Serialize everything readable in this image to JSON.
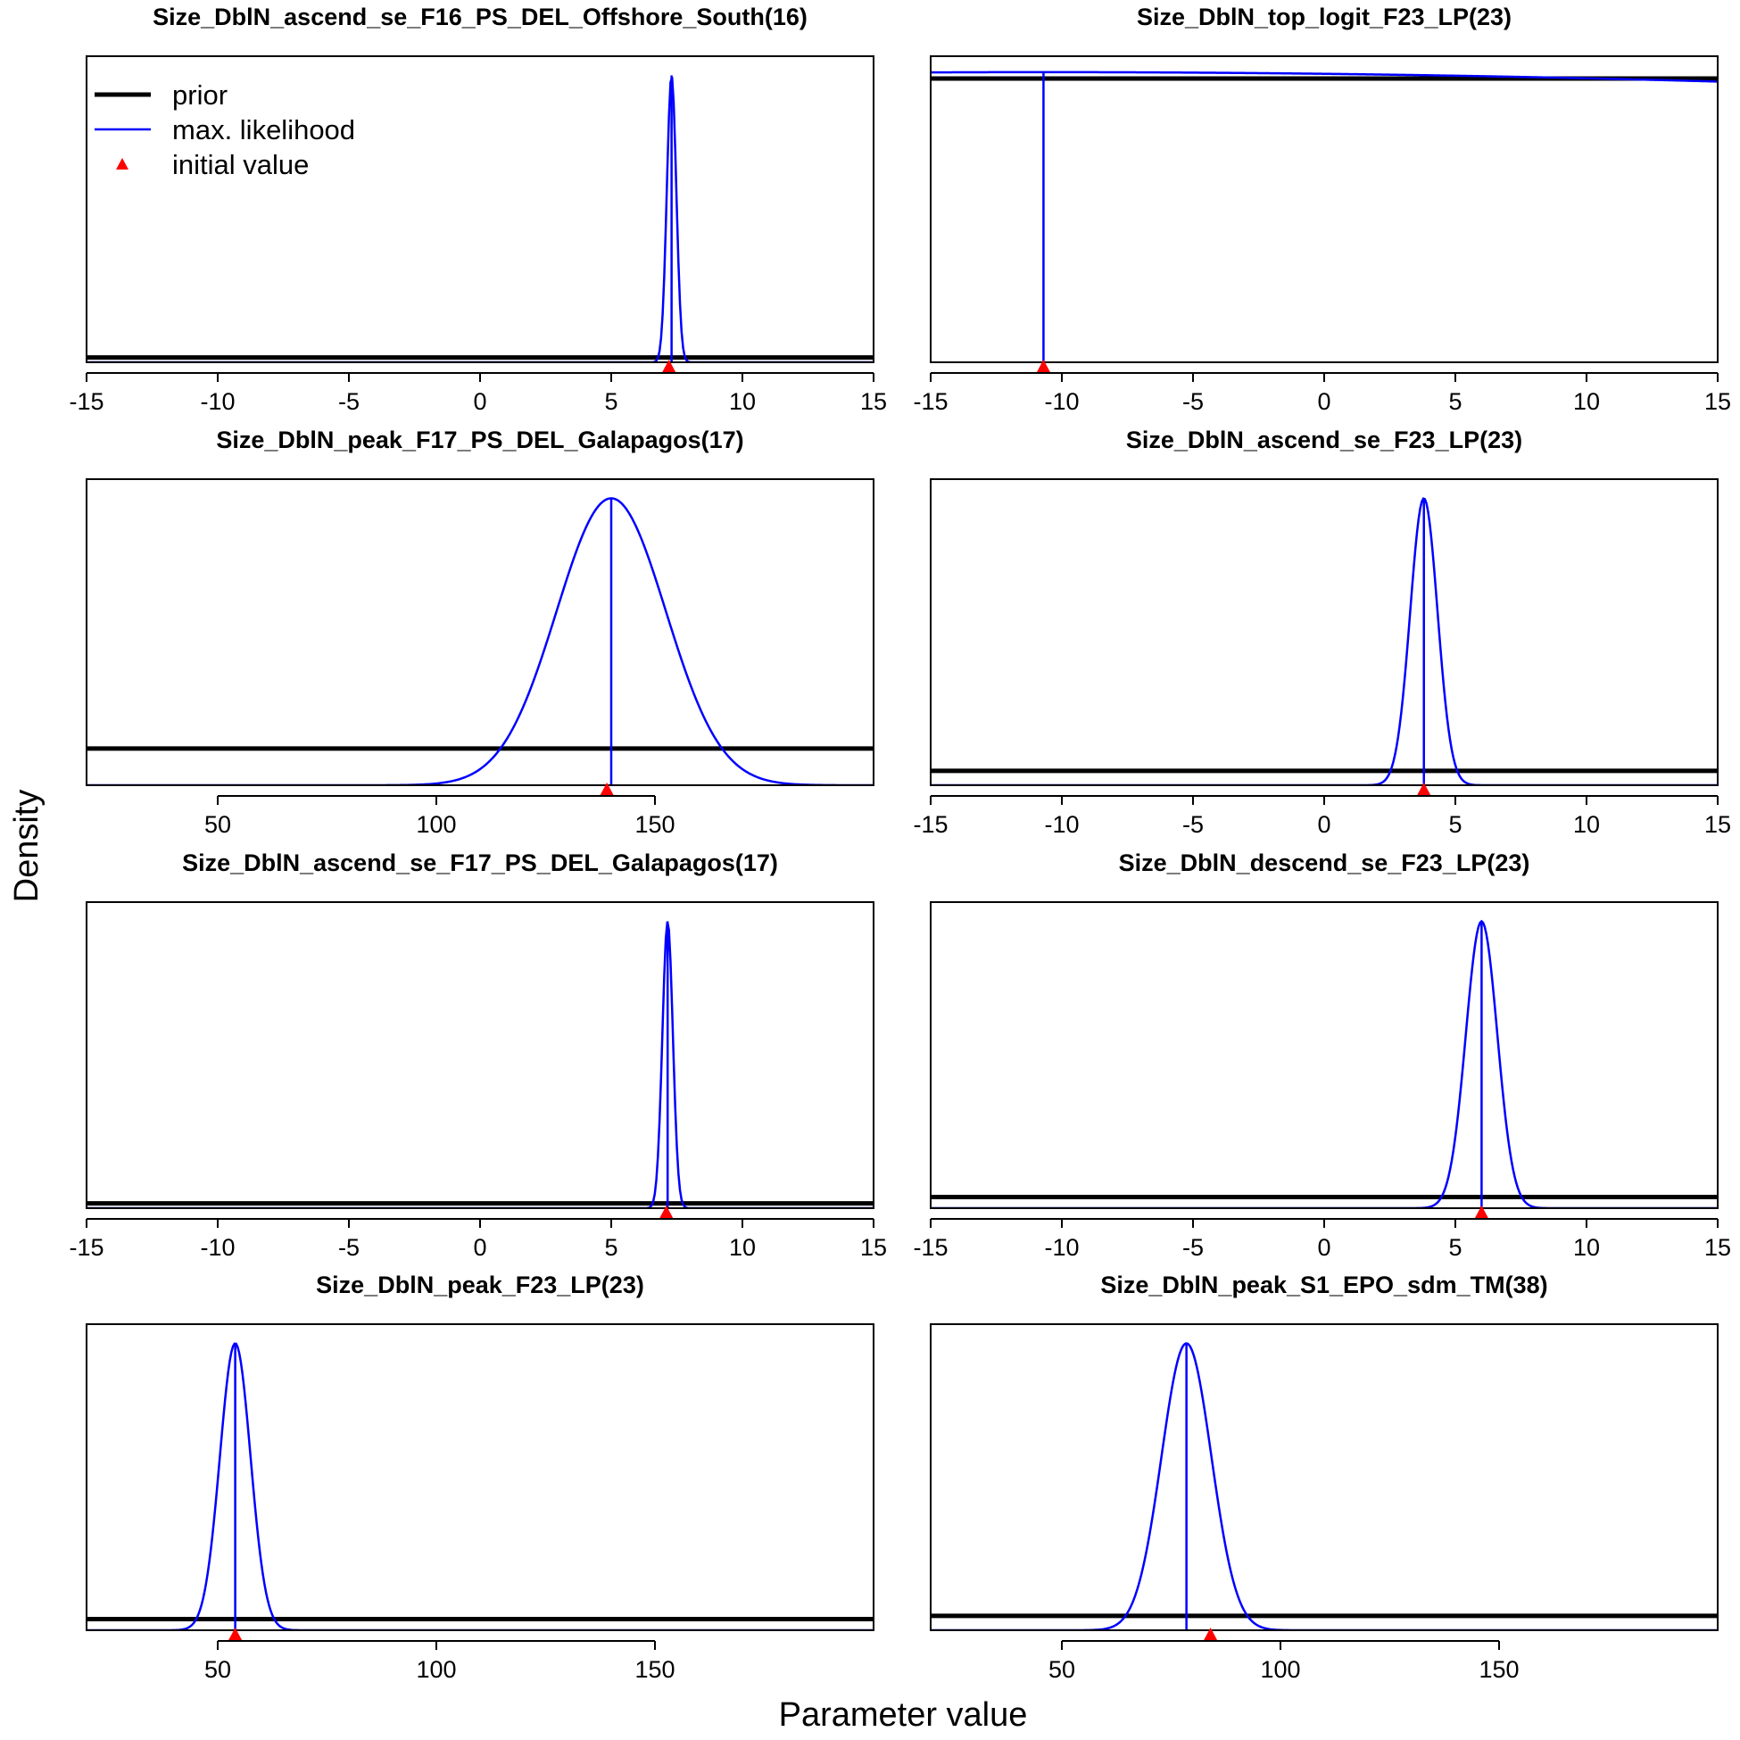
{
  "figure": {
    "xlabel": "Parameter value",
    "ylabel": "Density",
    "legend": {
      "placement": "top-left of first panel",
      "entries": [
        {
          "label": "prior",
          "color": "#000000",
          "style": "thick-line"
        },
        {
          "label": "max. likelihood",
          "color": "#0000ff",
          "style": "line"
        },
        {
          "label": "initial value",
          "color": "#ff0000",
          "style": "triangle"
        }
      ]
    }
  },
  "chart_data": [
    {
      "type": "line",
      "title": "Size_DblN_ascend_se_F16_PS_DEL_Offshore_South(16)",
      "xlim": [
        -15,
        15
      ],
      "xticks": [
        -15,
        -10,
        -5,
        0,
        5,
        10,
        15
      ],
      "prior": {
        "kind": "flat",
        "level": 0.015
      },
      "mle": {
        "mean": 7.3,
        "sd": 0.18,
        "peak": 0.9
      },
      "initial_value": 7.2
    },
    {
      "type": "line",
      "title": "Size_DblN_top_logit_F23_LP(23)",
      "xlim": [
        -15,
        15
      ],
      "xticks": [
        -15,
        -10,
        -5,
        0,
        5,
        10,
        15
      ],
      "prior": {
        "kind": "flat",
        "level": 0.89
      },
      "mle": {
        "mean": -10.7,
        "sd": 100,
        "peak": 0.91,
        "mean_line": 0.91
      },
      "initial_value": -10.7
    },
    {
      "type": "line",
      "title": "Size_DblN_peak_F17_PS_DEL_Galapagos(17)",
      "xlim": [
        20,
        200
      ],
      "xticks": [
        50,
        100,
        150
      ],
      "prior": {
        "kind": "flat",
        "level": 0.115
      },
      "mle": {
        "mean": 140,
        "sd": 12.5,
        "peak": 0.9
      },
      "initial_value": 139
    },
    {
      "type": "line",
      "title": "Size_DblN_ascend_se_F23_LP(23)",
      "xlim": [
        -15,
        15
      ],
      "xticks": [
        -15,
        -10,
        -5,
        0,
        5,
        10,
        15
      ],
      "prior": {
        "kind": "flat",
        "level": 0.045
      },
      "mle": {
        "mean": 3.8,
        "sd": 0.52,
        "peak": 0.9
      },
      "initial_value": 3.8
    },
    {
      "type": "line",
      "title": "Size_DblN_ascend_se_F17_PS_DEL_Galapagos(17)",
      "xlim": [
        -15,
        15
      ],
      "xticks": [
        -15,
        -10,
        -5,
        0,
        5,
        10,
        15
      ],
      "prior": {
        "kind": "flat",
        "level": 0.015
      },
      "mle": {
        "mean": 7.15,
        "sd": 0.2,
        "peak": 0.9
      },
      "initial_value": 7.1
    },
    {
      "type": "line",
      "title": "Size_DblN_descend_se_F23_LP(23)",
      "xlim": [
        -15,
        15
      ],
      "xticks": [
        -15,
        -10,
        -5,
        0,
        5,
        10,
        15
      ],
      "prior": {
        "kind": "flat",
        "level": 0.035
      },
      "mle": {
        "mean": 6.0,
        "sd": 0.6,
        "peak": 0.9
      },
      "initial_value": 6.0
    },
    {
      "type": "line",
      "title": "Size_DblN_peak_F23_LP(23)",
      "xlim": [
        20,
        200
      ],
      "xticks": [
        50,
        100,
        150
      ],
      "prior": {
        "kind": "flat",
        "level": 0.035
      },
      "mle": {
        "mean": 54,
        "sd": 3.5,
        "peak": 0.9
      },
      "initial_value": 54
    },
    {
      "type": "line",
      "title": "Size_DblN_peak_S1_EPO_sdm_TM(38)",
      "xlim": [
        20,
        200
      ],
      "xticks": [
        50,
        100,
        150
      ],
      "prior": {
        "kind": "flat",
        "level": 0.045
      },
      "mle": {
        "mean": 78.5,
        "sd": 5.7,
        "peak": 0.9
      },
      "initial_value": 84
    }
  ]
}
